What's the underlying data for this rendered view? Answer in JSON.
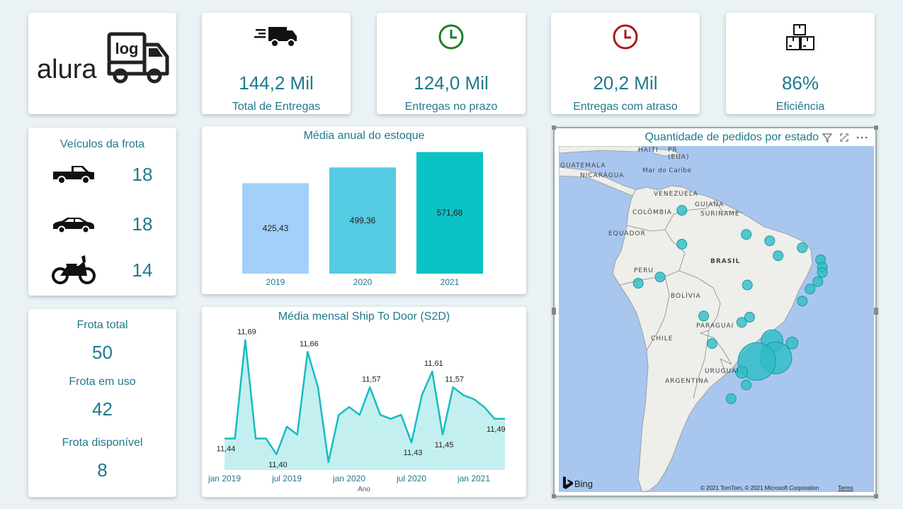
{
  "logo": {
    "brand": "alura",
    "sub": "log"
  },
  "kpis": [
    {
      "value": "144,2 Mil",
      "label": "Total de Entregas",
      "icon": "delivery-truck-icon"
    },
    {
      "value": "124,0 Mil",
      "label": "Entregas no prazo",
      "icon": "clock-green-icon"
    },
    {
      "value": "20,2 Mil",
      "label": "Entregas com atraso",
      "icon": "clock-red-icon"
    },
    {
      "value": "86%",
      "label": "Eficiência",
      "icon": "boxes-icon"
    }
  ],
  "vehicles": {
    "title": "Veículos da frota",
    "items": [
      {
        "icon": "pickup-truck-icon",
        "count": "18"
      },
      {
        "icon": "car-icon",
        "count": "18"
      },
      {
        "icon": "motorcycle-icon",
        "count": "14"
      }
    ]
  },
  "fleet": {
    "total_label": "Frota total",
    "total_value": "50",
    "in_use_label": "Frota em uso",
    "in_use_value": "42",
    "available_label": "Frota disponível",
    "available_value": "8"
  },
  "colors": {
    "accent": "#1f7a8c",
    "bar2019": "#a3d0fb",
    "bar2020": "#55cbe3",
    "bar2021": "#0bc2c4",
    "line": "#17bcc0",
    "area": "#c4eff0",
    "green": "#1e7d2a",
    "red": "#a71d1d"
  },
  "bar_chart": {
    "title": "Média anual do estoque",
    "chart_data": {
      "type": "bar",
      "categories": [
        "2019",
        "2020",
        "2021"
      ],
      "values": [
        425.43,
        499.36,
        571.68
      ],
      "labels": [
        "425,43",
        "499,36",
        "571,68"
      ],
      "ylim": [
        0,
        600
      ]
    }
  },
  "line_chart": {
    "title": "Média mensal Ship To Door (S2D)",
    "xlabel": "Ano",
    "x_ticks": [
      "jan 2019",
      "jul 2019",
      "jan 2020",
      "jul 2020",
      "jan 2021"
    ],
    "chart_data": {
      "type": "area",
      "x": [
        "2019-01",
        "2019-02",
        "2019-03",
        "2019-04",
        "2019-05",
        "2019-06",
        "2019-07",
        "2019-08",
        "2019-09",
        "2019-10",
        "2019-11",
        "2019-12",
        "2020-01",
        "2020-02",
        "2020-03",
        "2020-04",
        "2020-05",
        "2020-06",
        "2020-07",
        "2020-08",
        "2020-09",
        "2020-10",
        "2020-11",
        "2020-12",
        "2021-01",
        "2021-02",
        "2021-03",
        "2021-04"
      ],
      "values": [
        11.44,
        11.44,
        11.69,
        11.44,
        11.44,
        11.4,
        11.47,
        11.45,
        11.66,
        11.57,
        11.38,
        11.5,
        11.52,
        11.5,
        11.57,
        11.5,
        11.49,
        11.5,
        11.43,
        11.55,
        11.61,
        11.45,
        11.57,
        11.55,
        11.54,
        11.52,
        11.49,
        11.49
      ],
      "data_labels": [
        {
          "index": 0,
          "text": "11,44"
        },
        {
          "index": 2,
          "text": "11,69"
        },
        {
          "index": 5,
          "text": "11,40"
        },
        {
          "index": 8,
          "text": "11,66"
        },
        {
          "index": 14,
          "text": "11,57"
        },
        {
          "index": 18,
          "text": "11,43"
        },
        {
          "index": 20,
          "text": "11,61"
        },
        {
          "index": 21,
          "text": "11,45"
        },
        {
          "index": 22,
          "text": "11,57"
        },
        {
          "index": 26,
          "text": "11,49"
        }
      ],
      "ylim": [
        11.36,
        11.72
      ]
    }
  },
  "map": {
    "title": "Quantidade de pedidos por estado",
    "bing_label": "Bing",
    "copyright": "© 2021 TomTom, © 2021 Microsoft Corporation",
    "terms": "Terms",
    "labels": {
      "haiti": "HAITI",
      "pr": "PR",
      "eua": "(EUA)",
      "guatemala": "GUATEMALA",
      "nicaragua": "NICARÁGUA",
      "caribe": "Mar do Caribe",
      "venezuela": "VENEZUELA",
      "guiana": "GUIANA",
      "suriname": "SURINAME",
      "colombia": "COLÔMBIA",
      "equador": "EQUADOR",
      "brasil": "BRASIL",
      "peru": "PERU",
      "bolivia": "BOLÍVIA",
      "paraguai": "PARAGUAI",
      "chile": "CHILE",
      "uruguai": "URUGUAI",
      "argentina": "ARGENTINA"
    },
    "bubbles": [
      {
        "lon": -60.0,
        "lat": 2.8,
        "size": 1
      },
      {
        "lon": -48.5,
        "lat": -1.4,
        "size": 1
      },
      {
        "lon": -44.3,
        "lat": -2.5,
        "size": 1
      },
      {
        "lon": -42.8,
        "lat": -5.1,
        "size": 1
      },
      {
        "lon": -38.5,
        "lat": -3.7,
        "size": 1
      },
      {
        "lon": -35.2,
        "lat": -5.8,
        "size": 1
      },
      {
        "lon": -34.9,
        "lat": -7.1,
        "size": 1
      },
      {
        "lon": -34.9,
        "lat": -8.0,
        "size": 1
      },
      {
        "lon": -35.7,
        "lat": -9.6,
        "size": 1
      },
      {
        "lon": -37.1,
        "lat": -10.9,
        "size": 1
      },
      {
        "lon": -38.5,
        "lat": -13.0,
        "size": 1
      },
      {
        "lon": -60.0,
        "lat": -3.1,
        "size": 1
      },
      {
        "lon": -67.8,
        "lat": -9.9,
        "size": 1
      },
      {
        "lon": -63.9,
        "lat": -8.8,
        "size": 1
      },
      {
        "lon": -48.3,
        "lat": -10.2,
        "size": 1
      },
      {
        "lon": -56.1,
        "lat": -15.6,
        "size": 1
      },
      {
        "lon": -49.3,
        "lat": -16.7,
        "size": 1
      },
      {
        "lon": -47.9,
        "lat": -15.8,
        "size": 1
      },
      {
        "lon": -54.6,
        "lat": -20.4,
        "size": 1
      },
      {
        "lon": -43.9,
        "lat": -19.9,
        "size": 2.2
      },
      {
        "lon": -40.3,
        "lat": -20.3,
        "size": 1.2
      },
      {
        "lon": -43.2,
        "lat": -22.9,
        "size": 3.2
      },
      {
        "lon": -46.6,
        "lat": -23.5,
        "size": 3.8
      },
      {
        "lon": -49.3,
        "lat": -25.4,
        "size": 1.2
      },
      {
        "lon": -48.5,
        "lat": -27.6,
        "size": 1
      },
      {
        "lon": -51.2,
        "lat": -30.0,
        "size": 1
      }
    ]
  }
}
